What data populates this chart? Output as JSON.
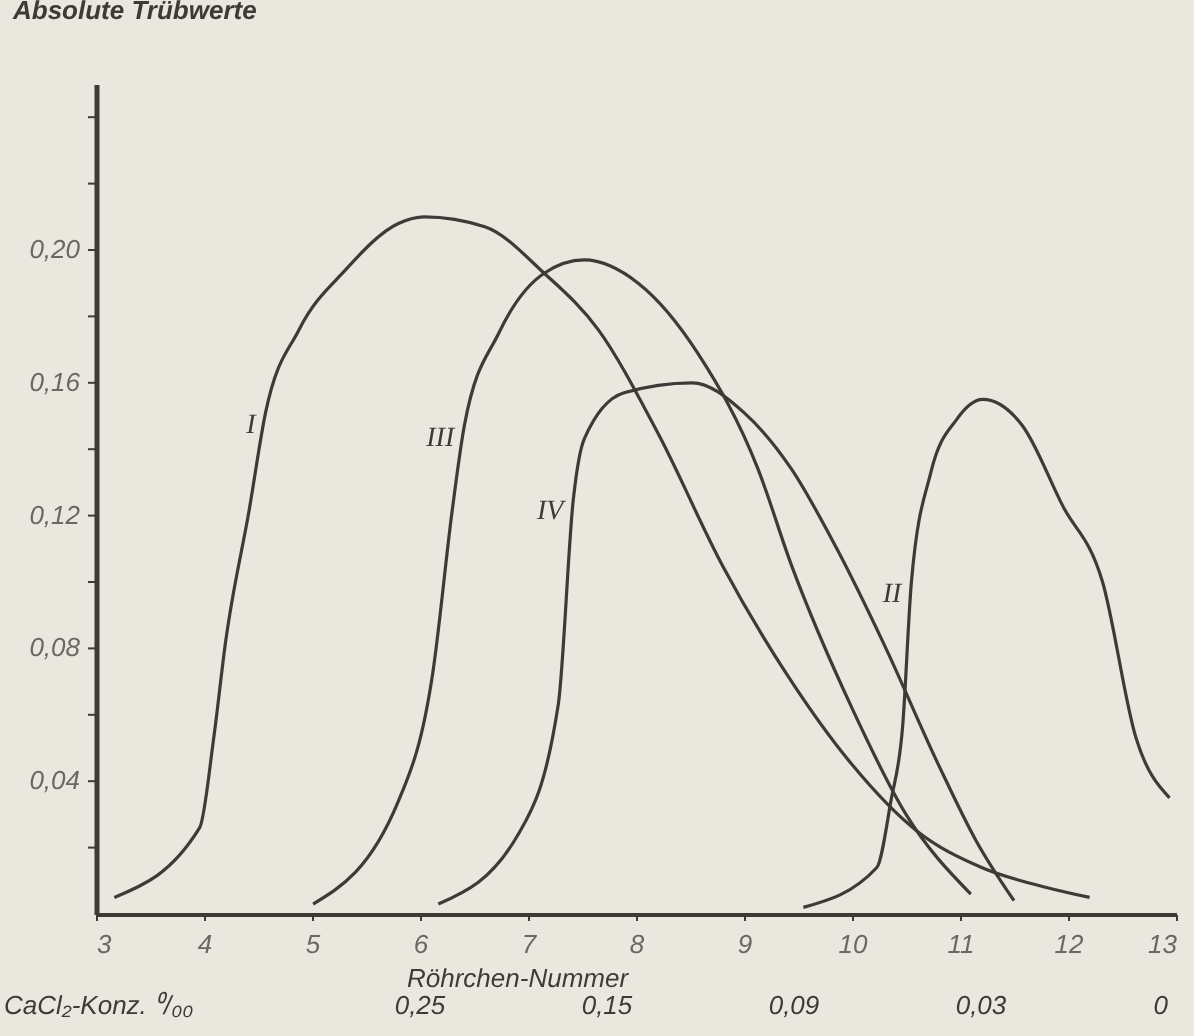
{
  "chart_data": {
    "type": "line",
    "ylabel": "Absolute Trübwerte",
    "xlabel": "Röhrchen-Nummer",
    "annotations": [
      "CaCl₂-Konz. ⁰/₀₀",
      "0,25",
      "0,15",
      "0,09",
      "0,03",
      "0"
    ],
    "xlim": [
      3,
      13
    ],
    "xticks": [
      3,
      4,
      5,
      6,
      7,
      8,
      9,
      10,
      11,
      12,
      13
    ],
    "ylim": [
      0,
      0.25
    ],
    "yticks": [
      {
        "value": 0.02,
        "label": null
      },
      {
        "value": 0.04,
        "label": "0,04"
      },
      {
        "value": 0.06,
        "label": null
      },
      {
        "value": 0.08,
        "label": "0,08"
      },
      {
        "value": 0.1,
        "label": null
      },
      {
        "value": 0.12,
        "label": "0,12"
      },
      {
        "value": 0.14,
        "label": null
      },
      {
        "value": 0.16,
        "label": "0,16"
      },
      {
        "value": 0.18,
        "label": null
      },
      {
        "value": 0.2,
        "label": "0,20"
      },
      {
        "value": 0.22,
        "label": null
      },
      {
        "value": 0.24,
        "label": null
      }
    ],
    "grid": false,
    "marker": "none",
    "line_style": "solid",
    "series": [
      {
        "name": "I",
        "color": "#3c3b38",
        "x": [
          3.17,
          3.96,
          4.09,
          4.2,
          4.42,
          4.57,
          4.88,
          5.31,
          5.8,
          6.04,
          6.6,
          7.15,
          7.65,
          8.2,
          8.8,
          9.4,
          10.0,
          10.6,
          11.2,
          11.8,
          12.2
        ],
        "values": [
          0.005,
          0.026,
          0.053,
          0.082,
          0.122,
          0.151,
          0.176,
          0.194,
          0.208,
          0.21,
          0.207,
          0.193,
          0.176,
          0.145,
          0.105,
          0.072,
          0.045,
          0.025,
          0.014,
          0.008,
          0.005
        ]
      },
      {
        "name": "III",
        "color": "#3c3b38",
        "x": [
          5.01,
          5.8,
          6.12,
          6.3,
          6.41,
          6.73,
          7.15,
          7.52,
          8.02,
          8.57,
          9.13,
          9.44,
          10.0,
          10.5,
          11.1
        ],
        "values": [
          0.003,
          0.034,
          0.073,
          0.122,
          0.147,
          0.175,
          0.193,
          0.197,
          0.19,
          0.169,
          0.134,
          0.105,
          0.062,
          0.03,
          0.006
        ]
      },
      {
        "name": "IV",
        "color": "#3c3b38",
        "x": [
          6.17,
          6.91,
          7.28,
          7.42,
          7.52,
          7.89,
          8.52,
          9.0,
          9.44,
          9.86,
          10.3,
          10.8,
          11.15,
          11.5
        ],
        "values": [
          0.003,
          0.024,
          0.063,
          0.125,
          0.143,
          0.157,
          0.16,
          0.151,
          0.134,
          0.11,
          0.081,
          0.045,
          0.022,
          0.004
        ]
      },
      {
        "name": "II",
        "color": "#3c3b38",
        "x": [
          9.55,
          10.23,
          10.36,
          10.47,
          10.55,
          10.73,
          10.97,
          11.21,
          11.58,
          11.95,
          12.32,
          12.63,
          12.94
        ],
        "values": [
          0.002,
          0.014,
          0.034,
          0.057,
          0.1,
          0.133,
          0.149,
          0.155,
          0.147,
          0.123,
          0.1,
          0.053,
          0.035
        ]
      }
    ]
  }
}
